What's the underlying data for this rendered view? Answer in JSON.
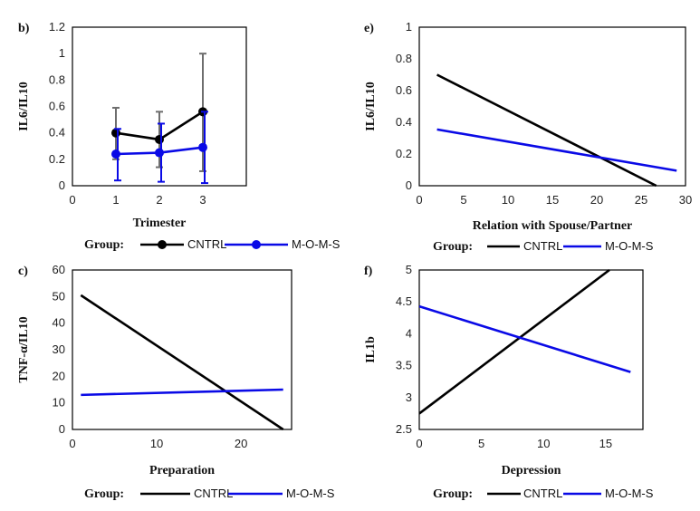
{
  "legend": {
    "title": "Group:",
    "entries": [
      {
        "name": "CNTRL",
        "color": "#000000"
      },
      {
        "name": "M-O-M-S",
        "color": "#0a0ae6"
      }
    ]
  },
  "chart_data": [
    {
      "id": "b",
      "label": "b)",
      "type": "line",
      "xlabel": "Trimester",
      "ylabel": "IL6/IL10",
      "xlim": [
        0,
        4
      ],
      "ylim": [
        0,
        1.2
      ],
      "xticks": [
        "0",
        "1",
        "2",
        "3"
      ],
      "yticks": [
        "0",
        "0.2",
        "0.4",
        "0.6",
        "0.8",
        "1",
        "1.2"
      ],
      "markers": true,
      "series": [
        {
          "name": "CNTRL",
          "color": "#000000",
          "err_color": "#6e6e6e",
          "x": [
            1,
            2,
            3
          ],
          "y": [
            0.4,
            0.35,
            0.56
          ],
          "err_low": [
            0.2,
            0.14,
            0.11
          ],
          "err_high": [
            0.59,
            0.56,
            1.0
          ]
        },
        {
          "name": "M-O-M-S",
          "color": "#0a0ae6",
          "err_color": "#0a0ae6",
          "x": [
            1,
            2,
            3
          ],
          "y": [
            0.24,
            0.25,
            0.29
          ],
          "err_low": [
            0.04,
            0.03,
            0.02
          ],
          "err_high": [
            0.43,
            0.47,
            0.56
          ]
        }
      ]
    },
    {
      "id": "e",
      "label": "e)",
      "type": "line",
      "xlabel": "Relation with Spouse/Partner",
      "ylabel": "IL6/IL10",
      "xlim": [
        0,
        30
      ],
      "ylim": [
        0,
        1
      ],
      "xticks": [
        "0",
        "5",
        "10",
        "15",
        "20",
        "25",
        "30"
      ],
      "yticks": [
        "0",
        "0.2",
        "0.4",
        "0.6",
        "0.8",
        "1"
      ],
      "markers": false,
      "series": [
        {
          "name": "CNTRL",
          "color": "#000000",
          "x": [
            2,
            26.7
          ],
          "y": [
            0.7,
            0
          ]
        },
        {
          "name": "M-O-M-S",
          "color": "#0a0ae6",
          "x": [
            2,
            29
          ],
          "y": [
            0.355,
            0.095
          ]
        }
      ]
    },
    {
      "id": "c",
      "label": "c)",
      "type": "line",
      "xlabel": "Preparation",
      "ylabel": "TNF-α/IL10",
      "xlim": [
        0,
        26
      ],
      "ylim": [
        0,
        60
      ],
      "xticks": [
        "0",
        "10",
        "20"
      ],
      "ytickvals": [
        0,
        10,
        20,
        30,
        40,
        50,
        60
      ],
      "yticks": [
        "0",
        "10",
        "20",
        "30",
        "40",
        "50",
        "60"
      ],
      "xtickvals": [
        0,
        10,
        20
      ],
      "markers": false,
      "series": [
        {
          "name": "CNTRL",
          "color": "#000000",
          "x": [
            1,
            25
          ],
          "y": [
            50.5,
            0
          ]
        },
        {
          "name": "M-O-M-S",
          "color": "#0a0ae6",
          "x": [
            1,
            25
          ],
          "y": [
            13,
            15
          ]
        }
      ]
    },
    {
      "id": "f",
      "label": "f)",
      "type": "line",
      "xlabel": "Depression",
      "ylabel": "IL1b",
      "xlim": [
        0,
        18
      ],
      "ylim": [
        2.5,
        5
      ],
      "xticks": [
        "0",
        "5",
        "10",
        "15"
      ],
      "xtickvals": [
        0,
        5,
        10,
        15
      ],
      "yticks": [
        "2.5",
        "3",
        "3.5",
        "4",
        "4.5",
        "5"
      ],
      "ytickvals": [
        2.5,
        3,
        3.5,
        4,
        4.5,
        5
      ],
      "markers": false,
      "series": [
        {
          "name": "CNTRL",
          "color": "#000000",
          "x": [
            0,
            15.3
          ],
          "y": [
            2.75,
            5.0
          ]
        },
        {
          "name": "M-O-M-S",
          "color": "#0a0ae6",
          "x": [
            0,
            17
          ],
          "y": [
            4.43,
            3.4
          ]
        }
      ]
    }
  ]
}
